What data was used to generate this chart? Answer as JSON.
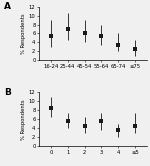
{
  "panel_A": {
    "label": "A",
    "x_labels": [
      "16-24",
      "25-44",
      "45-54",
      "55-64",
      "65-74",
      "≥75"
    ],
    "x_values": [
      0,
      1,
      2,
      3,
      4,
      5
    ],
    "y_values": [
      5.5,
      7.0,
      6.0,
      5.5,
      3.5,
      2.5
    ],
    "y_err_low": [
      2.5,
      2.5,
      2.0,
      2.0,
      1.5,
      1.5
    ],
    "y_err_high": [
      3.5,
      3.5,
      3.0,
      2.5,
      2.5,
      2.0
    ],
    "ylim": [
      0,
      12
    ],
    "yticks": [
      0,
      2,
      4,
      6,
      8,
      10,
      12
    ],
    "ylabel": "% Respondents"
  },
  "panel_B": {
    "label": "B",
    "x_labels": [
      "0",
      "1",
      "2",
      "3",
      "4",
      "≥5"
    ],
    "x_values": [
      0,
      1,
      2,
      3,
      4,
      5
    ],
    "y_values": [
      8.5,
      5.5,
      4.5,
      5.5,
      3.5,
      4.5
    ],
    "y_err_low": [
      2.0,
      1.5,
      1.5,
      2.0,
      1.5,
      1.5
    ],
    "y_err_high": [
      2.5,
      2.0,
      2.0,
      2.0,
      1.5,
      3.0
    ],
    "ylim": [
      0,
      12
    ],
    "yticks": [
      0,
      2,
      4,
      6,
      8,
      10,
      12
    ],
    "ylabel": "% Respondents"
  },
  "marker_color": "#1a1a1a",
  "marker_size": 2.8,
  "capsize": 1.5,
  "elinewidth": 0.6,
  "capthick": 0.6,
  "tick_fontsize": 3.8,
  "label_fontsize": 3.8,
  "panel_label_fontsize": 6.5,
  "background_color": "#f0f0f0"
}
